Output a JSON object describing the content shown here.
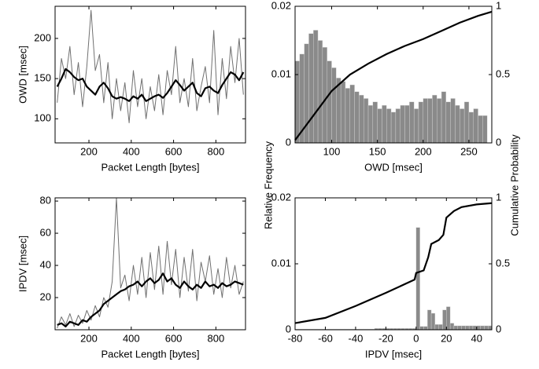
{
  "chart_data": [
    {
      "type": "line",
      "ylabel": "OWD [msec]",
      "xlabel": "Packet Length [bytes]",
      "xlim": [
        40,
        940
      ],
      "xticks": [
        200,
        400,
        600,
        800
      ],
      "ylim": [
        70,
        240
      ],
      "yticks": [
        100,
        150,
        200
      ],
      "x": [
        50,
        70,
        90,
        110,
        130,
        150,
        170,
        190,
        210,
        230,
        250,
        270,
        290,
        310,
        330,
        350,
        370,
        390,
        410,
        430,
        450,
        470,
        490,
        510,
        530,
        550,
        570,
        590,
        610,
        630,
        650,
        670,
        690,
        710,
        730,
        750,
        770,
        790,
        810,
        830,
        850,
        870,
        890,
        910,
        930
      ],
      "series": [
        {
          "color": "#707070",
          "values": [
            120,
            175,
            150,
            190,
            130,
            170,
            115,
            165,
            235,
            160,
            180,
            120,
            170,
            100,
            150,
            110,
            145,
            95,
            160,
            115,
            150,
            100,
            140,
            110,
            155,
            105,
            160,
            130,
            190,
            120,
            150,
            115,
            175,
            110,
            140,
            165,
            120,
            210,
            105,
            175,
            125,
            190,
            145,
            200,
            130
          ]
        },
        {
          "color": "#000000",
          "values": [
            140,
            150,
            162,
            158,
            152,
            148,
            150,
            140,
            135,
            130,
            140,
            145,
            138,
            128,
            125,
            127,
            125,
            122,
            128,
            125,
            130,
            122,
            125,
            128,
            130,
            126,
            132,
            140,
            148,
            142,
            135,
            140,
            145,
            132,
            128,
            138,
            140,
            135,
            132,
            142,
            150,
            158,
            155,
            148,
            158
          ]
        }
      ]
    },
    {
      "type": "histogram",
      "xlabel": "OWD [msec]",
      "color": "#8a8a8a",
      "xlim": [
        60,
        275
      ],
      "xticks": [
        100,
        150,
        200,
        250
      ],
      "ylim": [
        0,
        0.02
      ],
      "yticks": [
        0,
        0.01,
        0.02
      ],
      "y2lim": [
        0,
        1
      ],
      "y2ticks": [
        0,
        0.5,
        1
      ],
      "bins": [
        60,
        65,
        70,
        75,
        80,
        85,
        90,
        95,
        100,
        105,
        110,
        115,
        120,
        125,
        130,
        135,
        140,
        145,
        150,
        155,
        160,
        165,
        170,
        175,
        180,
        185,
        190,
        195,
        200,
        205,
        210,
        215,
        220,
        225,
        230,
        235,
        240,
        245,
        250,
        255,
        260,
        265,
        270
      ],
      "values": [
        0.012,
        0.013,
        0.0145,
        0.016,
        0.0165,
        0.015,
        0.014,
        0.012,
        0.011,
        0.0095,
        0.009,
        0.008,
        0.0085,
        0.0075,
        0.007,
        0.0065,
        0.0055,
        0.006,
        0.005,
        0.0055,
        0.005,
        0.0045,
        0.005,
        0.0055,
        0.0055,
        0.006,
        0.005,
        0.006,
        0.0065,
        0.0065,
        0.007,
        0.0065,
        0.0075,
        0.006,
        0.0065,
        0.0055,
        0.005,
        0.006,
        0.0045,
        0.005,
        0.004,
        0.004
      ],
      "cdf": {
        "color": "#000000",
        "axis": "y2",
        "x": [
          60,
          80,
          100,
          120,
          140,
          160,
          180,
          200,
          220,
          240,
          260,
          275
        ],
        "values": [
          0.02,
          0.2,
          0.38,
          0.5,
          0.58,
          0.65,
          0.71,
          0.76,
          0.82,
          0.88,
          0.93,
          0.96
        ]
      }
    },
    {
      "type": "line",
      "ylabel": "IPDV [msec]",
      "xlabel": "Packet Length [bytes]",
      "xlim": [
        40,
        940
      ],
      "xticks": [
        200,
        400,
        600,
        800
      ],
      "ylim": [
        0,
        82
      ],
      "yticks": [
        20,
        40,
        60,
        80
      ],
      "x": [
        50,
        70,
        90,
        110,
        130,
        150,
        170,
        190,
        210,
        230,
        250,
        270,
        290,
        310,
        330,
        350,
        370,
        390,
        410,
        430,
        450,
        470,
        490,
        510,
        530,
        550,
        570,
        590,
        610,
        630,
        650,
        670,
        690,
        710,
        730,
        750,
        770,
        790,
        810,
        830,
        850,
        870,
        890,
        910,
        930
      ],
      "series": [
        {
          "color": "#707070",
          "values": [
            1,
            8,
            3,
            10,
            2,
            9,
            4,
            12,
            6,
            15,
            8,
            20,
            14,
            30,
            82,
            26,
            34,
            18,
            40,
            22,
            45,
            20,
            48,
            25,
            52,
            22,
            55,
            28,
            50,
            20,
            45,
            24,
            50,
            18,
            42,
            30,
            46,
            22,
            38,
            20,
            45,
            26,
            40,
            22,
            30
          ]
        },
        {
          "color": "#000000",
          "values": [
            3,
            4,
            2,
            5,
            4,
            3,
            6,
            5,
            8,
            10,
            12,
            16,
            18,
            20,
            22,
            24,
            25,
            27,
            28,
            30,
            27,
            30,
            32,
            29,
            31,
            35,
            30,
            32,
            28,
            26,
            30,
            27,
            25,
            28,
            26,
            30,
            27,
            28,
            26,
            29,
            27,
            28,
            30,
            29,
            28
          ]
        }
      ]
    },
    {
      "type": "histogram",
      "xlabel": "IPDV [msec]",
      "color": "#8a8a8a",
      "xlim": [
        -80,
        50
      ],
      "xticks": [
        -80,
        -60,
        -40,
        -20,
        0,
        20,
        40
      ],
      "ylim": [
        0,
        0.02
      ],
      "yticks": [
        0,
        0.01,
        0.02
      ],
      "y2lim": [
        0,
        1
      ],
      "y2ticks": [
        0,
        0.5,
        1
      ],
      "bins": [
        -80,
        -77.5,
        -75,
        -72.5,
        -70,
        -67.5,
        -65,
        -62.5,
        -60,
        -57.5,
        -55,
        -52.5,
        -50,
        -47.5,
        -45,
        -42.5,
        -40,
        -37.5,
        -35,
        -32.5,
        -30,
        -27.5,
        -25,
        -22.5,
        -20,
        -17.5,
        -15,
        -12.5,
        -10,
        -7.5,
        -5,
        -2.5,
        0,
        2.5,
        5,
        7.5,
        10,
        12.5,
        15,
        17.5,
        20,
        22.5,
        25,
        27.5,
        30,
        32.5,
        35,
        37.5,
        40,
        42.5,
        45,
        47.5,
        50
      ],
      "values": [
        0.0001,
        0.0001,
        0.0001,
        0.0001,
        0.0001,
        0.0001,
        0.0001,
        0.0001,
        0.0001,
        0.0001,
        0.0001,
        0.0001,
        0.0001,
        0.0001,
        0.0001,
        0.0001,
        0.0001,
        0.0001,
        0.0001,
        0.0001,
        0.0001,
        0.0002,
        0.0002,
        0.0002,
        0.0002,
        0.0002,
        0.0002,
        0.0002,
        0.0002,
        0.0002,
        0.0002,
        0.0002,
        0.0155,
        0.0005,
        0.0005,
        0.003,
        0.0025,
        0.0008,
        0.0008,
        0.003,
        0.0035,
        0.001,
        0.0006,
        0.0006,
        0.0006,
        0.0006,
        0.0006,
        0.0006,
        0.0006,
        0.0006,
        0.0006,
        0.0006
      ],
      "cdf": {
        "color": "#000000",
        "axis": "y2",
        "x": [
          -80,
          -60,
          -40,
          -20,
          -1,
          0,
          5,
          8,
          10,
          15,
          18,
          20,
          25,
          30,
          40,
          50
        ],
        "values": [
          0.05,
          0.09,
          0.18,
          0.28,
          0.38,
          0.43,
          0.45,
          0.55,
          0.65,
          0.68,
          0.72,
          0.85,
          0.9,
          0.93,
          0.95,
          0.96
        ]
      }
    }
  ],
  "labels": {
    "left": "Relative Frequency",
    "right": "Cumulative Probability"
  }
}
